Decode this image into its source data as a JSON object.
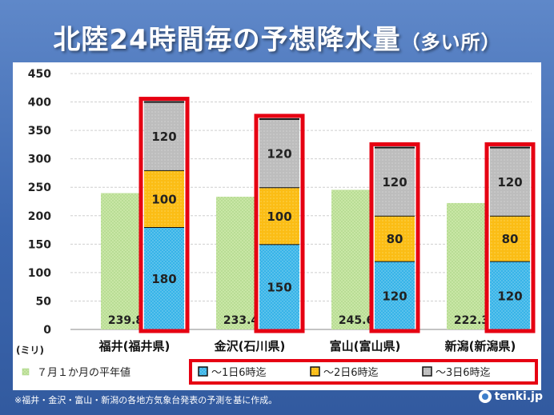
{
  "header": {
    "title_main": "北陸24時間毎の予想降水量",
    "title_paren": "（多い所）"
  },
  "footer": {
    "note": "※福井・金沢・富山・新潟の各地方気象台発表の予測を基に作成。",
    "brand": "tenki.jp"
  },
  "colors": {
    "normal": "#c9e6a6",
    "day1": "#37b4e8",
    "day2": "#fbbd15",
    "day3": "#bdbdbd",
    "highlight": "#e60012"
  },
  "chart_data": {
    "type": "bar",
    "categories": [
      "福井(福井県)",
      "金沢(石川県)",
      "富山(富山県)",
      "新潟(新潟県)"
    ],
    "ylim": [
      0,
      450
    ],
    "yticks": [
      0,
      50,
      100,
      150,
      200,
      250,
      300,
      350,
      400,
      450
    ],
    "ylabel": "(ミリ)",
    "grid": true,
    "normal_series": {
      "name": "７月１か月の平年値",
      "values": [
        239.8,
        233.4,
        245.6,
        222.3
      ]
    },
    "stacked_series": [
      {
        "name": "〜1日6時迄",
        "values": [
          180,
          150,
          120,
          120
        ]
      },
      {
        "name": "〜2日6時迄",
        "values": [
          100,
          100,
          80,
          80
        ]
      },
      {
        "name": "〜3日6時迄",
        "values": [
          120,
          120,
          120,
          120
        ]
      }
    ],
    "legend_position": "bottom"
  }
}
